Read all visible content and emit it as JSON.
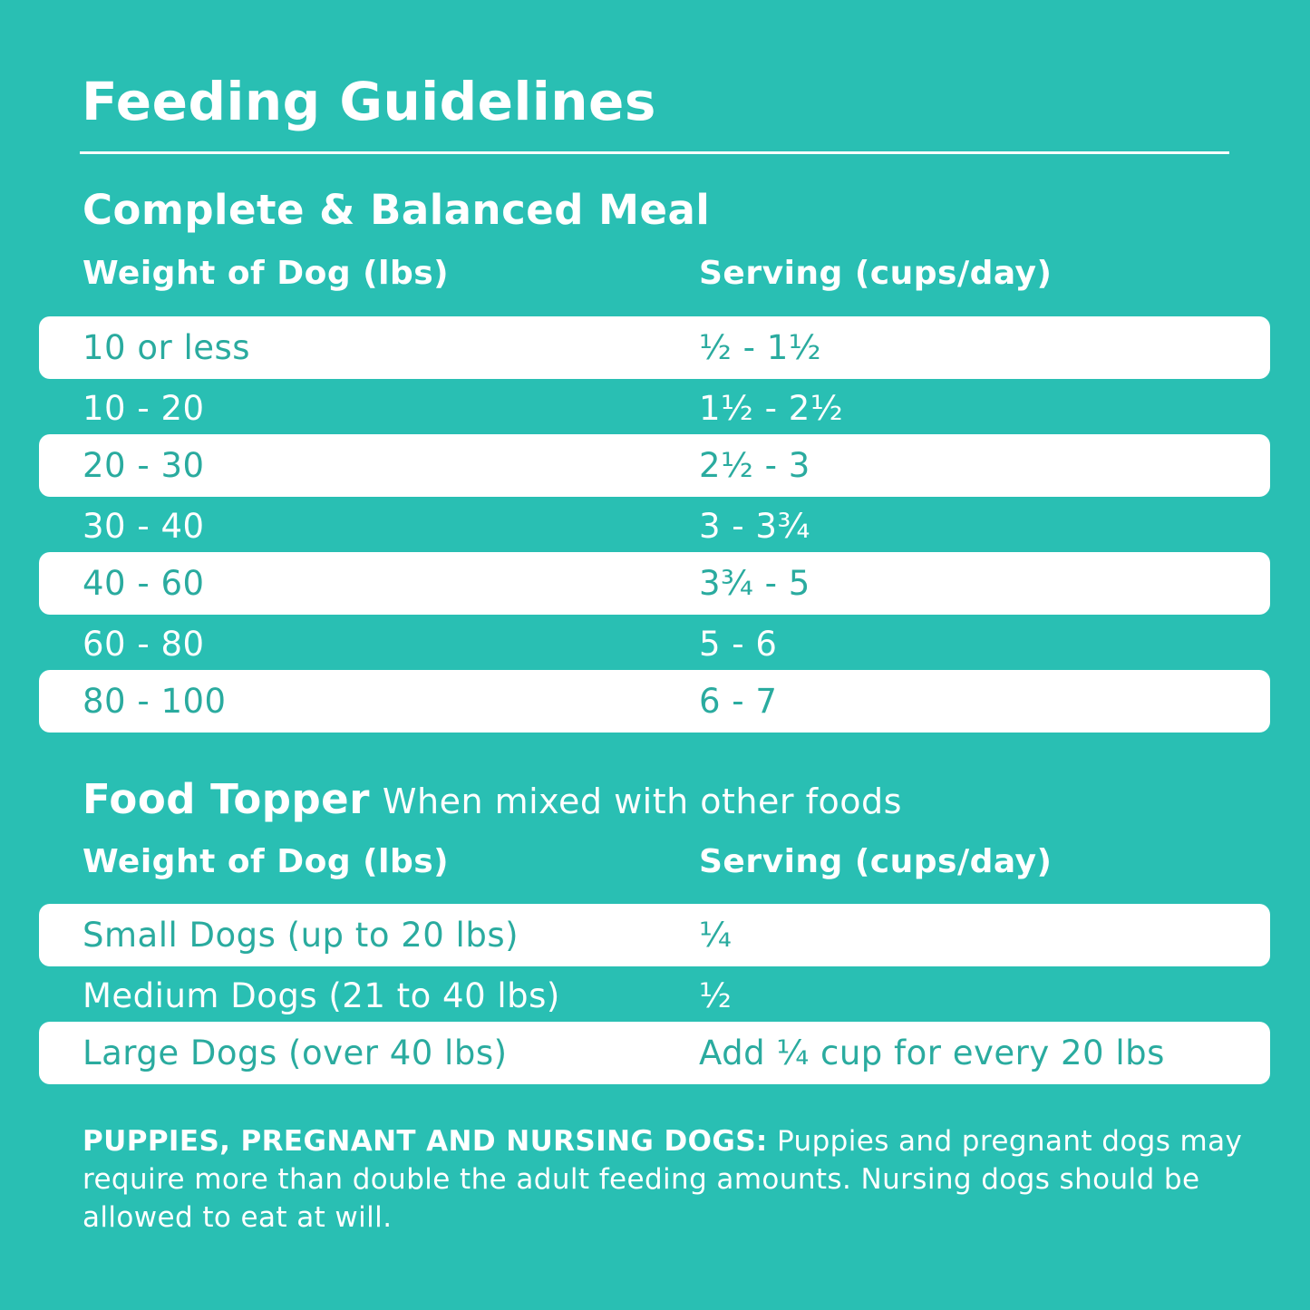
{
  "title": "Feeding Guidelines",
  "complete": {
    "heading": "Complete & Balanced Meal",
    "col1": "Weight of Dog (lbs)",
    "col2": "Serving (cups/day)",
    "rows": [
      {
        "weight": "10 or less",
        "serving": "½ - 1½"
      },
      {
        "weight": "10 - 20",
        "serving": "1½ - 2½"
      },
      {
        "weight": "20 - 30",
        "serving": "2½ - 3"
      },
      {
        "weight": "30 - 40",
        "serving": "3 - 3¾"
      },
      {
        "weight": "40 - 60",
        "serving": "3¾ - 5"
      },
      {
        "weight": "60 - 80",
        "serving": "5 - 6"
      },
      {
        "weight": "80 - 100",
        "serving": "6 - 7"
      }
    ]
  },
  "topper": {
    "heading": "Food Topper",
    "subheading": "When mixed with other foods",
    "col1": "Weight of Dog (lbs)",
    "col2": "Serving (cups/day)",
    "rows": [
      {
        "weight": "Small Dogs (up to 20 lbs)",
        "serving": "¼"
      },
      {
        "weight": "Medium Dogs (21 to 40 lbs)",
        "serving": "½"
      },
      {
        "weight": "Large Dogs (over 40 lbs)",
        "serving": "Add ¼ cup for every 20 lbs"
      }
    ]
  },
  "note": {
    "label": "PUPPIES, PREGNANT AND NURSING DOGS:",
    "text": "Puppies and pregnant dogs may require more than double the adult feeding amounts. Nursing dogs should be allowed to eat at will."
  },
  "colors": {
    "background": "#29bfb3",
    "row_text": "#2aab9f",
    "row_fill": "#ffffff"
  }
}
